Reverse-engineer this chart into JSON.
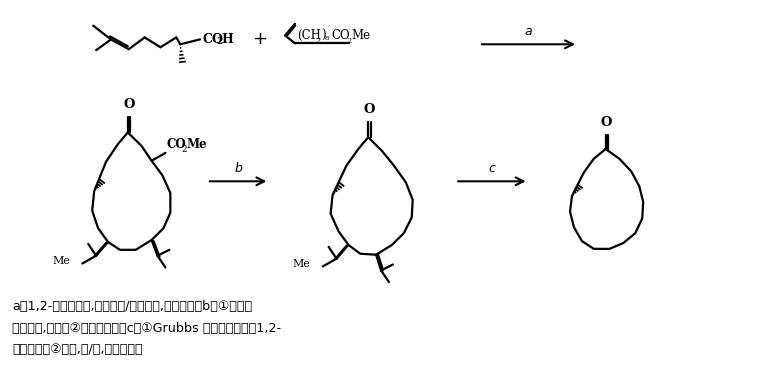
{
  "bg_color": "#ffffff",
  "line_color": "#000000",
  "line_width": 1.6,
  "fig_width": 7.74,
  "fig_height": 3.91,
  "caption_line1": "a．1,2-二甲基咪唑,四氯化钛/三丁基胺,二氯甲烷；b．①氢氧化",
  "caption_line2": "钠水溶液,甲醇；②盐酸水溶液；c．①Grubbs 第二代催化剂；1,2-",
  "caption_line3": "二氯乙烷；②氢气,钯/碳,乙酸乙酯）"
}
